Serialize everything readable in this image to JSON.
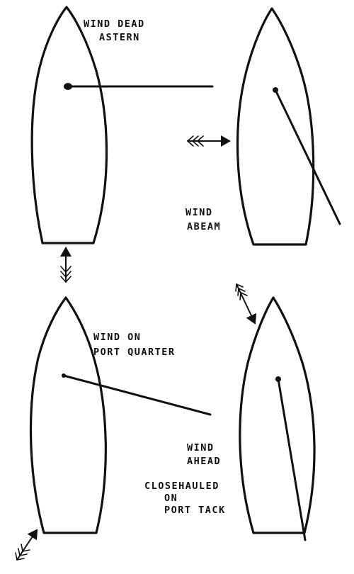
{
  "diagrams": [
    {
      "id": "dead-astern",
      "label_lines": [
        "WIND DEAD",
        "ASTERN"
      ]
    },
    {
      "id": "abeam",
      "label_lines": [
        "WIND",
        "ABEAM"
      ]
    },
    {
      "id": "port-quarter",
      "label_lines": [
        "WIND ON",
        "PORT QUARTER"
      ]
    },
    {
      "id": "ahead",
      "label_lines": [
        "WIND",
        "AHEAD"
      ],
      "sub_lines": [
        "CLOSEHAULED",
        "ON",
        "PORT TACK"
      ]
    }
  ]
}
